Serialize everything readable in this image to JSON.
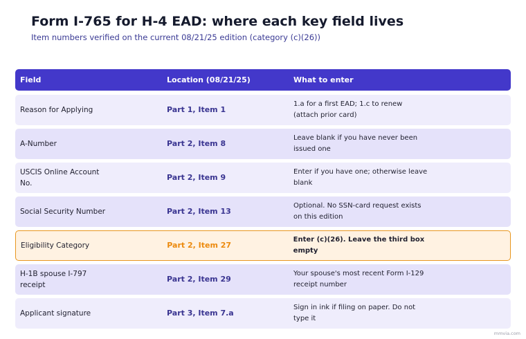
{
  "header": {
    "title": "Form I-765 for H-4 EAD: where each key field lives",
    "subtitle": "Item numbers verified on the current 08/21/25 edition (category (c)(26))"
  },
  "table": {
    "columns": [
      "Field",
      "Location (08/21/25)",
      "What to enter"
    ],
    "rows": [
      [
        "Reason for Applying",
        "Part 1, Item 1",
        "1.a for a first EAD; 1.c to renew (attach prior card)"
      ],
      [
        "A-Number",
        "Part 2, Item 8",
        "Leave blank if you have never been issued one"
      ],
      [
        "USCIS Online Account No.",
        "Part 2, Item 9",
        "Enter if you have one; otherwise leave blank"
      ],
      [
        "Social Security Number",
        "Part 2, Item 13",
        "Optional. No SSN-card request exists on this edition"
      ],
      [
        "Eligibility Category",
        "Part 2, Item 27",
        "Enter (c)(26). Leave the third box empty"
      ],
      [
        "H-1B spouse I-797 receipt",
        "Part 2, Item 29",
        "Your spouse's most recent Form I-129 receipt number"
      ],
      [
        "Applicant signature",
        "Part 3, Item 7.a",
        "Sign in ink if filing on paper. Do not type it"
      ]
    ]
  },
  "footer": {
    "source": "mmvia.com"
  }
}
